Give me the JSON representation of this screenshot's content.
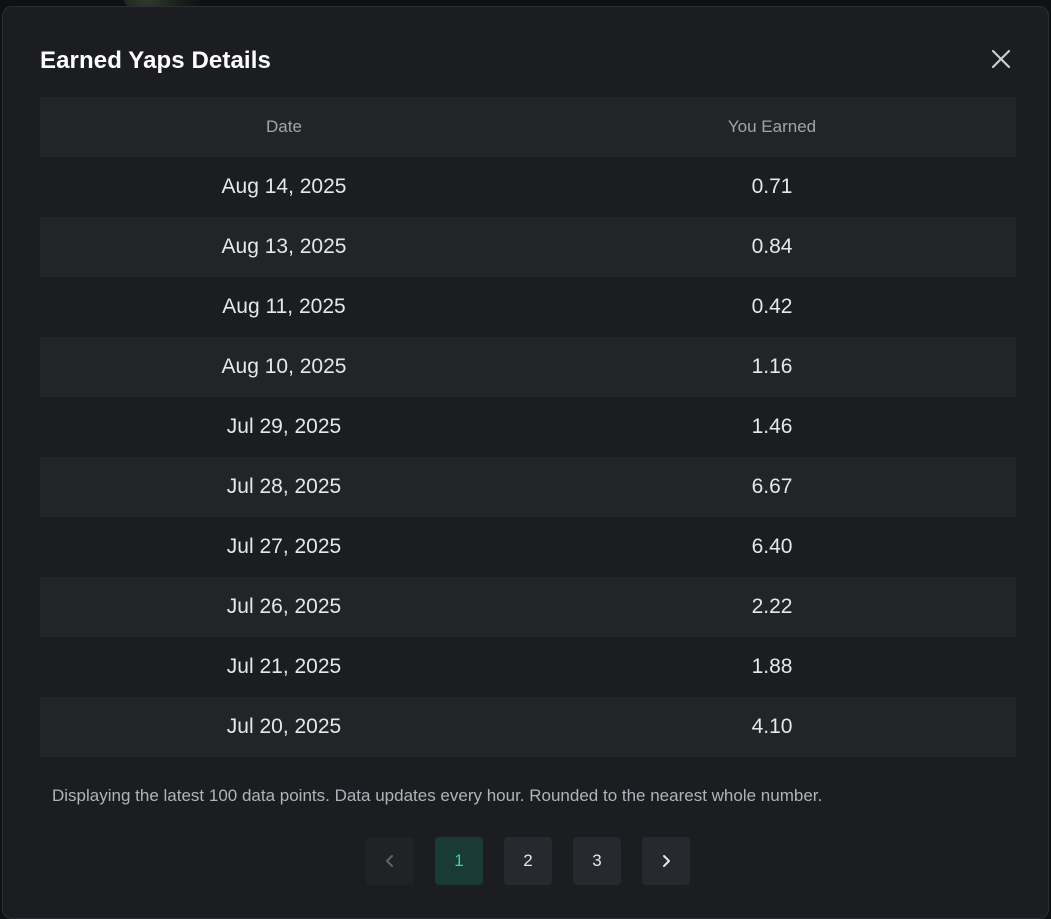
{
  "modal": {
    "title": "Earned Yaps Details"
  },
  "table": {
    "columns": [
      "Date",
      "You Earned"
    ],
    "rows": [
      {
        "date": "Aug 14, 2025",
        "earned": "0.71"
      },
      {
        "date": "Aug 13, 2025",
        "earned": "0.84"
      },
      {
        "date": "Aug 11, 2025",
        "earned": "0.42"
      },
      {
        "date": "Aug 10, 2025",
        "earned": "1.16"
      },
      {
        "date": "Jul 29, 2025",
        "earned": "1.46"
      },
      {
        "date": "Jul 28, 2025",
        "earned": "6.67"
      },
      {
        "date": "Jul 27, 2025",
        "earned": "6.40"
      },
      {
        "date": "Jul 26, 2025",
        "earned": "2.22"
      },
      {
        "date": "Jul 21, 2025",
        "earned": "1.88"
      },
      {
        "date": "Jul 20, 2025",
        "earned": "4.10"
      }
    ]
  },
  "footnote": "Displaying the latest 100 data points. Data updates every hour. Rounded to the nearest whole number.",
  "pagination": {
    "pages": [
      "1",
      "2",
      "3"
    ],
    "current_page": "1",
    "prev_icon": "chevron-left-icon",
    "next_icon": "chevron-right-icon"
  },
  "colors": {
    "modal_bg": "#1b1d20",
    "stripe_bg": "#222528",
    "active_page_bg": "#1a3a36",
    "active_page_text": "#3ecfa8"
  }
}
